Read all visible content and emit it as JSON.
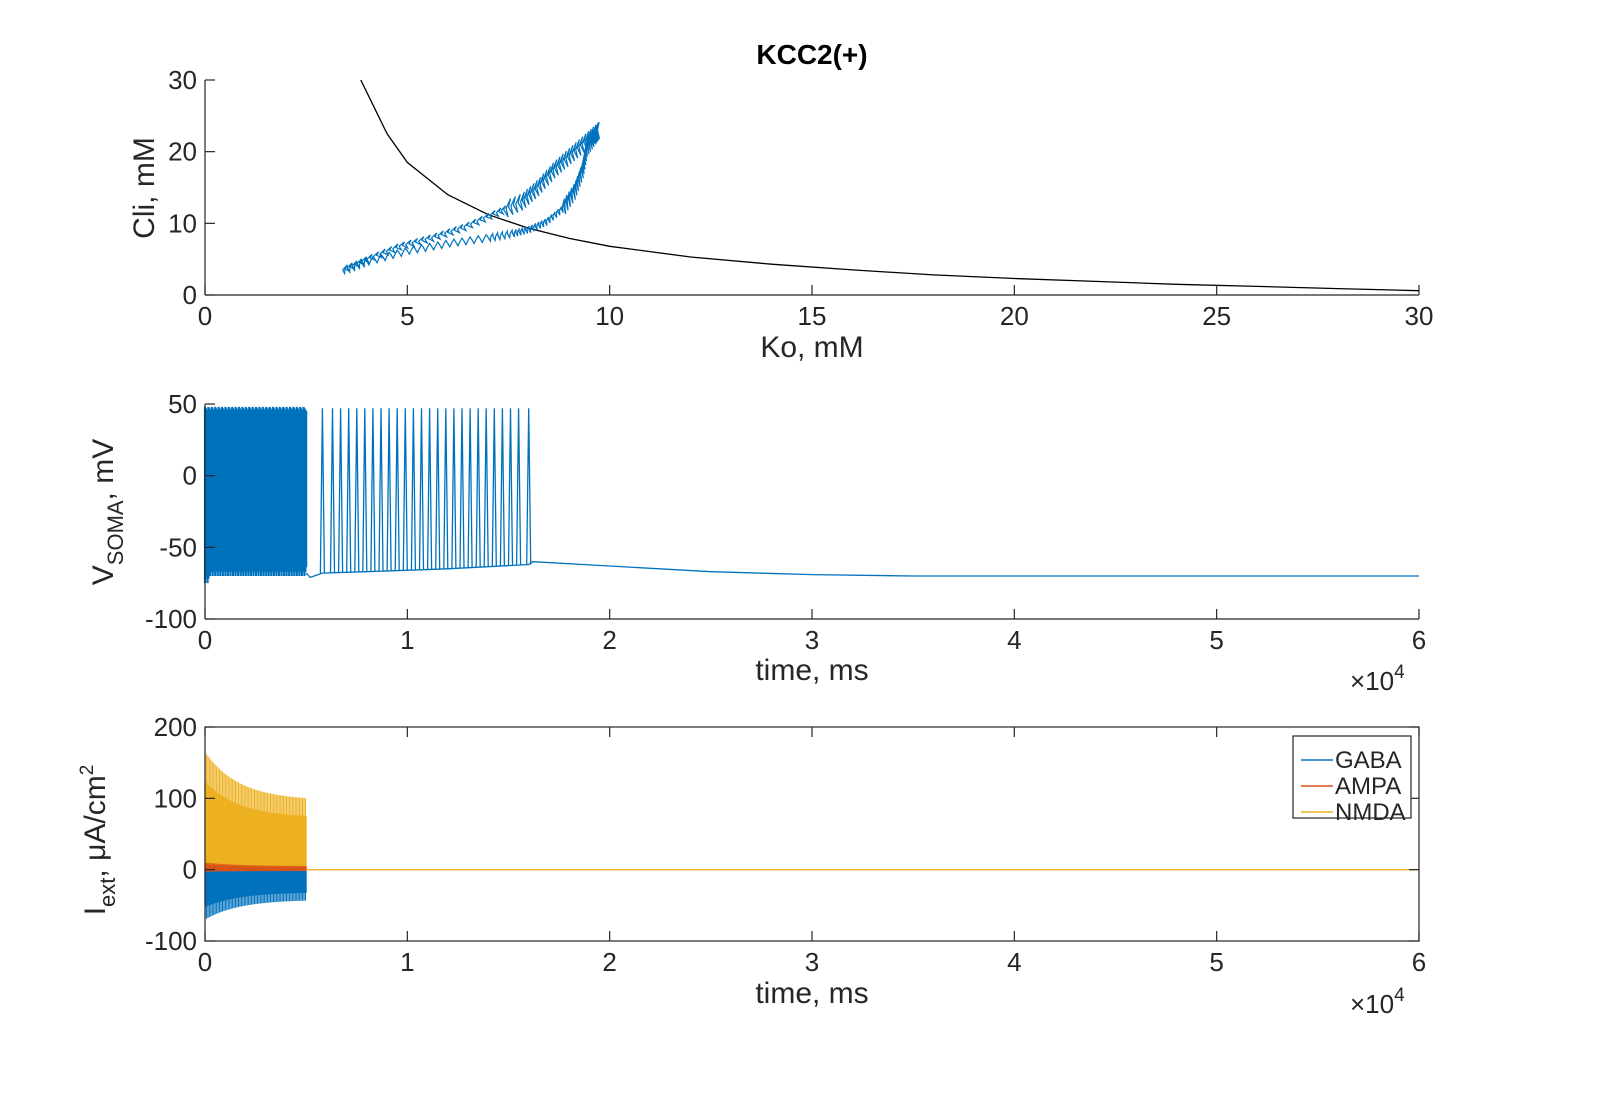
{
  "figure_title": "KCC2(+)",
  "colors": {
    "blue": "#0072BD",
    "red": "#D95319",
    "yellow": "#EDB120",
    "black": "#000000",
    "axis": "#262626"
  },
  "chart_data": [
    {
      "id": "phase",
      "type": "line",
      "title": "KCC2(+)",
      "xlabel": "Ko, mM",
      "ylabel": "Cli, mM",
      "xlim": [
        0,
        30
      ],
      "ylim": [
        0,
        30
      ],
      "xticks": [
        "0",
        "5",
        "10",
        "15",
        "20",
        "25",
        "30"
      ],
      "yticks": [
        "0",
        "10",
        "20",
        "30"
      ],
      "grid": false,
      "series": [
        {
          "color": "black",
          "description": "nullcline curve",
          "x": [
            3.85,
            4.5,
            5,
            6,
            7,
            8,
            9,
            10,
            12,
            14,
            16,
            18,
            20,
            22,
            24,
            26,
            28,
            30
          ],
          "y": [
            30,
            22.5,
            18.5,
            14,
            11.2,
            9.3,
            7.9,
            6.8,
            5.3,
            4.3,
            3.5,
            2.8,
            2.3,
            1.9,
            1.5,
            1.2,
            0.9,
            0.6
          ]
        },
        {
          "color": "blue",
          "description": "trajectory loop (sawtooth)",
          "x": [
            3.4,
            4.0,
            5.0,
            6.0,
            7.0,
            7.6,
            8.0,
            8.4,
            8.8,
            9.1,
            9.3,
            9.4,
            9.6,
            9.7,
            9.4,
            9.0,
            8.6,
            8.2,
            7.8,
            7.2,
            6.4,
            5.6,
            4.8,
            4.0,
            3.4
          ],
          "y": [
            3.5,
            4.7,
            6.2,
            7.2,
            8.0,
            8.6,
            9.2,
            10.2,
            12.0,
            14.5,
            17.5,
            20.5,
            22.2,
            23.0,
            21.5,
            19.5,
            17.5,
            15.0,
            13.0,
            11.5,
            9.5,
            8.0,
            6.8,
            5.0,
            3.5
          ]
        }
      ]
    },
    {
      "id": "vsoma",
      "type": "line",
      "xlabel": "time, ms",
      "ylabel": "V_SOMA, mV",
      "ylabel_main": "V",
      "ylabel_sub": "SOMA",
      "ylabel_tail": ", mV",
      "xlim": [
        0,
        6
      ],
      "ylim": [
        -100,
        50
      ],
      "xticks": [
        "0",
        "1",
        "2",
        "3",
        "4",
        "5",
        "6"
      ],
      "yticks": [
        "-100",
        "-50",
        "0",
        "50"
      ],
      "x_exponent_base": "×10",
      "x_exponent": "4",
      "grid": false,
      "series": [
        {
          "color": "blue",
          "description": "membrane potential",
          "dense_burst": {
            "x_start": 0,
            "x_end": 0.5,
            "y_top": 48,
            "y_bottom": -70
          },
          "spikes_x": [
            0.58,
            0.63,
            0.67,
            0.71,
            0.75,
            0.79,
            0.83,
            0.87,
            0.91,
            0.95,
            0.99,
            1.03,
            1.07,
            1.11,
            1.15,
            1.19,
            1.23,
            1.27,
            1.31,
            1.35,
            1.39,
            1.43,
            1.47,
            1.51,
            1.55,
            1.6
          ],
          "spike_peak": 47,
          "baseline": {
            "x": [
              0.5,
              0.52,
              0.58,
              0.8,
              1.2,
              1.6,
              1.62,
              2.0,
              2.5,
              3.0,
              3.5,
              4.0,
              5.0,
              6.0
            ],
            "y": [
              -68,
              -71,
              -68,
              -67,
              -65,
              -62,
              -60,
              -63,
              -67,
              -69,
              -70,
              -70,
              -70,
              -70
            ]
          }
        }
      ]
    },
    {
      "id": "iext",
      "type": "line",
      "xlabel": "time, ms",
      "ylabel": "I_ext, μA/cm²",
      "ylabel_main": "I",
      "ylabel_sub": "ext",
      "ylabel_tail": ", μA/cm",
      "ylabel_sup": "2",
      "xlim": [
        0,
        6
      ],
      "ylim": [
        -100,
        200
      ],
      "xticks": [
        "0",
        "1",
        "2",
        "3",
        "4",
        "5",
        "6"
      ],
      "yticks": [
        "-100",
        "0",
        "100",
        "200"
      ],
      "x_exponent_base": "×10",
      "x_exponent": "4",
      "legend_placement": "top-right",
      "grid": false,
      "series": [
        {
          "name": "GABA",
          "color": "blue",
          "burst": {
            "x_start": 0,
            "x_end": 0.5,
            "max_start": 0,
            "max_end": 0,
            "min_start": -70,
            "min_end": -42
          }
        },
        {
          "name": "AMPA",
          "color": "red",
          "burst": {
            "x_start": 0,
            "x_end": 0.5,
            "max_start": 10,
            "max_end": 5,
            "min_start": -3,
            "min_end": -2
          }
        },
        {
          "name": "NMDA",
          "color": "yellow",
          "burst": {
            "x_start": 0,
            "x_end": 0.5,
            "max_start": 165,
            "max_end": 97,
            "min_start": 0,
            "min_end": 0
          }
        }
      ]
    }
  ]
}
